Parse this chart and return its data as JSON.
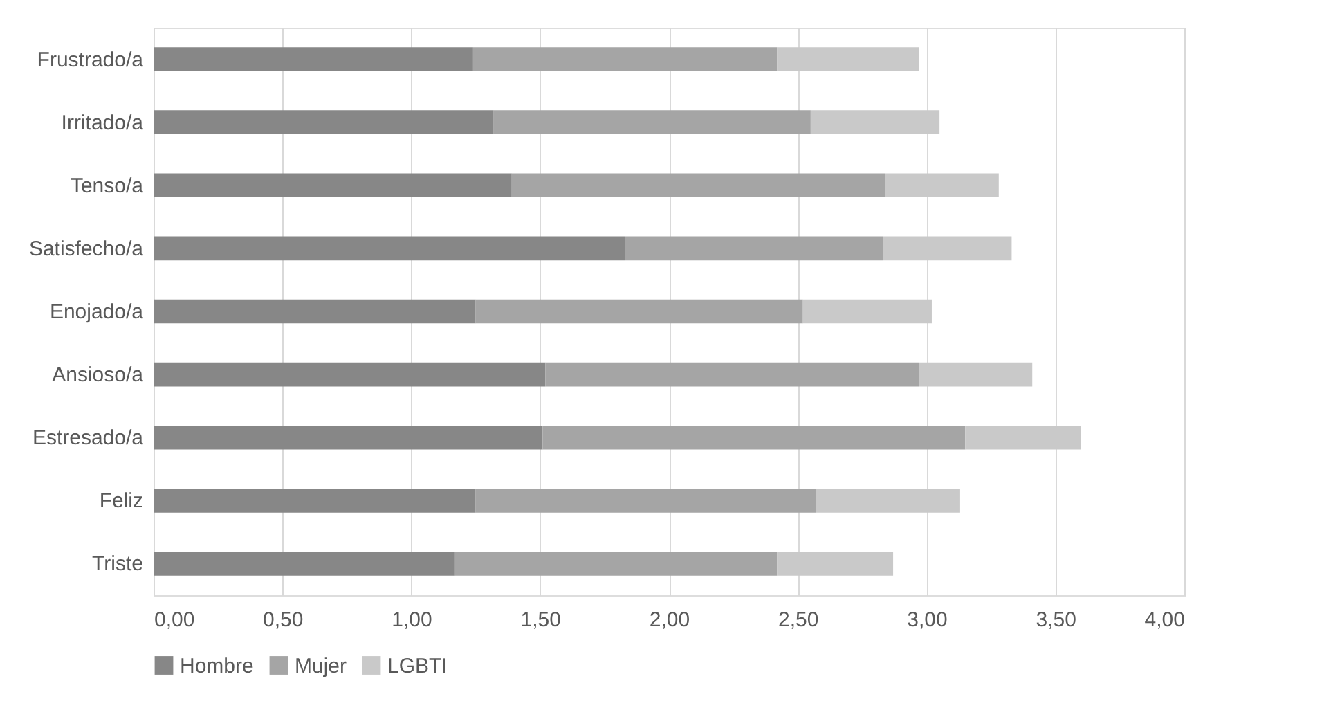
{
  "chart_data": {
    "type": "bar",
    "orientation": "horizontal",
    "stacked": true,
    "categories": [
      "Frustrado/a",
      "Irritado/a",
      "Tenso/a",
      "Satisfecho/a",
      "Enojado/a",
      "Ansioso/a",
      "Estresado/a",
      "Feliz",
      "Triste"
    ],
    "series": [
      {
        "name": "Hombre",
        "color": "#878787",
        "values": [
          1.24,
          1.32,
          1.39,
          1.83,
          1.25,
          1.52,
          1.51,
          1.25,
          1.17
        ]
      },
      {
        "name": "Mujer",
        "color": "#a5a5a5",
        "values": [
          1.18,
          1.23,
          1.45,
          1.0,
          1.27,
          1.45,
          1.64,
          1.32,
          1.25
        ]
      },
      {
        "name": "LGBTI",
        "color": "#c9c9c9",
        "values": [
          0.55,
          0.5,
          0.44,
          0.5,
          0.5,
          0.44,
          0.45,
          0.56,
          0.45
        ]
      }
    ],
    "xlim": [
      0,
      4
    ],
    "xticks": [
      {
        "value": 0,
        "label": "0,00"
      },
      {
        "value": 0.5,
        "label": "0,50"
      },
      {
        "value": 1,
        "label": "1,00"
      },
      {
        "value": 1.5,
        "label": "1,50"
      },
      {
        "value": 2,
        "label": "2,00"
      },
      {
        "value": 2.5,
        "label": "2,50"
      },
      {
        "value": 3,
        "label": "3,00"
      },
      {
        "value": 3.5,
        "label": "3,50"
      },
      {
        "value": 4,
        "label": "4,00"
      }
    ],
    "grid": "x",
    "legend": "bottom"
  }
}
